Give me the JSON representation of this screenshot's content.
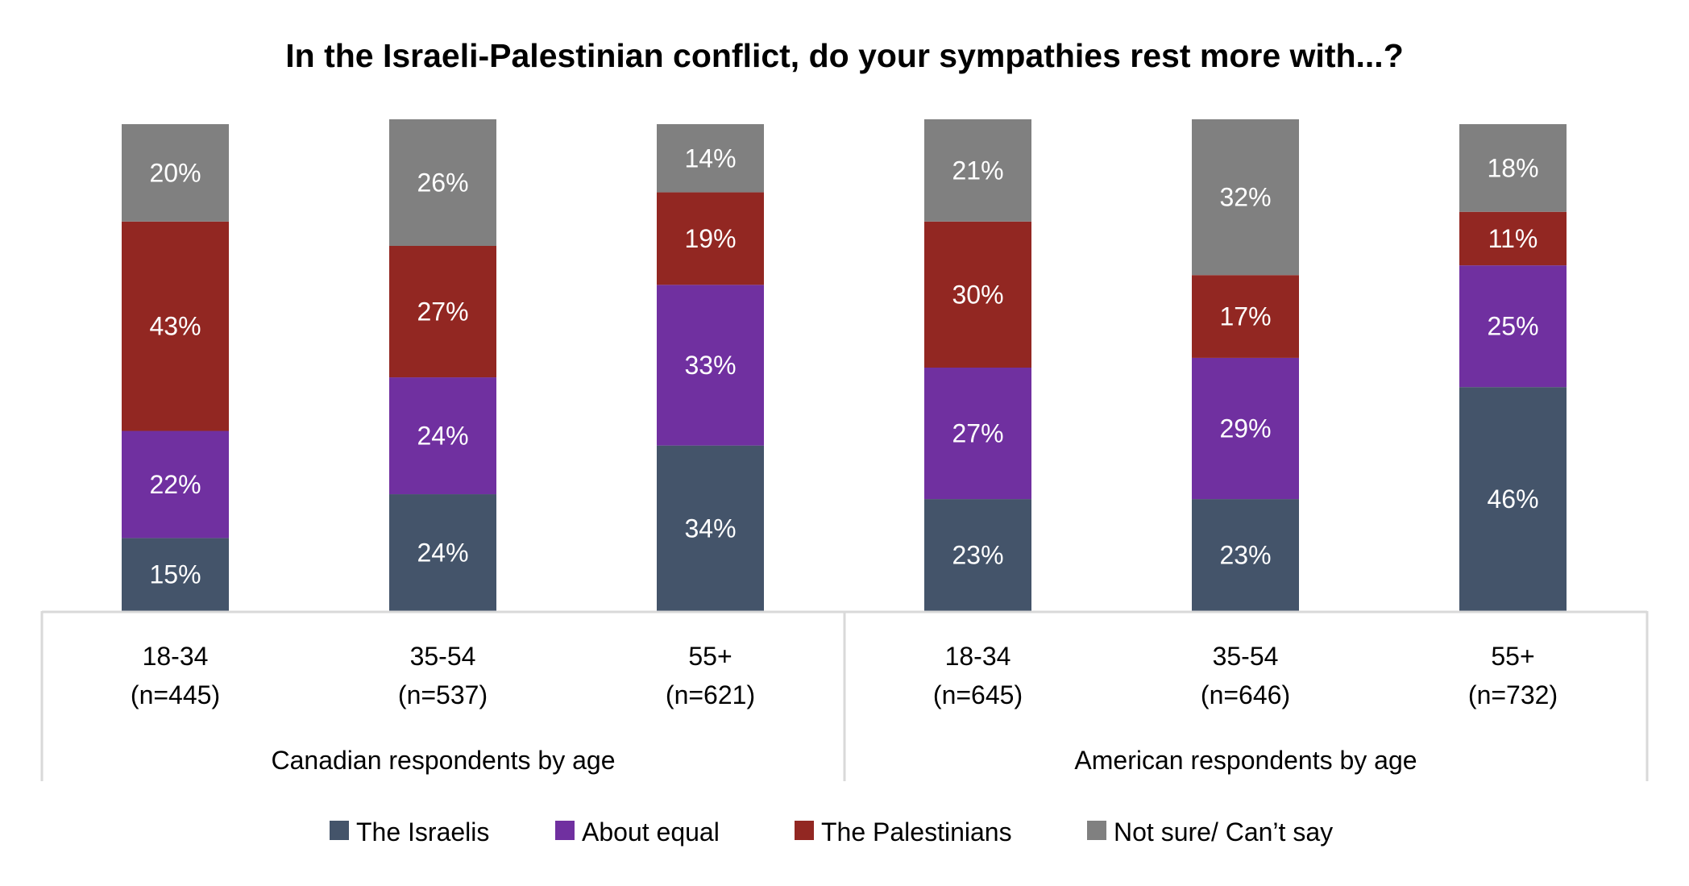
{
  "chart_data": {
    "type": "bar",
    "stacked": true,
    "percent": true,
    "title": "In the Israeli-Palestinian conflict, do your sympathies rest more with...?",
    "xlabel": "",
    "ylabel": "",
    "ylim": [
      0,
      100
    ],
    "grid": false,
    "legend_position": "bottom",
    "groups": [
      {
        "label": "Canadian respondents by age",
        "categories": [
          {
            "age": "18-34",
            "n": "(n=445)"
          },
          {
            "age": "35-54",
            "n": "(n=537)"
          },
          {
            "age": "55+",
            "n": "(n=621)"
          }
        ]
      },
      {
        "label": "American respondents by age",
        "categories": [
          {
            "age": "18-34",
            "n": "(n=645)"
          },
          {
            "age": "35-54",
            "n": "(n=646)"
          },
          {
            "age": "55+",
            "n": "(n=732)"
          }
        ]
      }
    ],
    "series": [
      {
        "name": "The Israelis",
        "color": "#44546a",
        "values": [
          15,
          24,
          34,
          23,
          23,
          46
        ],
        "labels": [
          "15%",
          "24%",
          "34%",
          "23%",
          "23%",
          "46%"
        ]
      },
      {
        "name": "About equal",
        "color": "#7030a0",
        "values": [
          22,
          24,
          33,
          27,
          29,
          25
        ],
        "labels": [
          "22%",
          "24%",
          "33%",
          "27%",
          "29%",
          "25%"
        ]
      },
      {
        "name": "The Palestinians",
        "color": "#922722",
        "values": [
          43,
          27,
          19,
          30,
          17,
          11
        ],
        "labels": [
          "43%",
          "27%",
          "19%",
          "30%",
          "17%",
          "11%"
        ]
      },
      {
        "name": "Not sure/ Can’t say",
        "color": "#808080",
        "values": [
          20,
          26,
          14,
          21,
          32,
          18
        ],
        "labels": [
          "20%",
          "26%",
          "14%",
          "21%",
          "32%",
          "18%"
        ]
      }
    ]
  }
}
